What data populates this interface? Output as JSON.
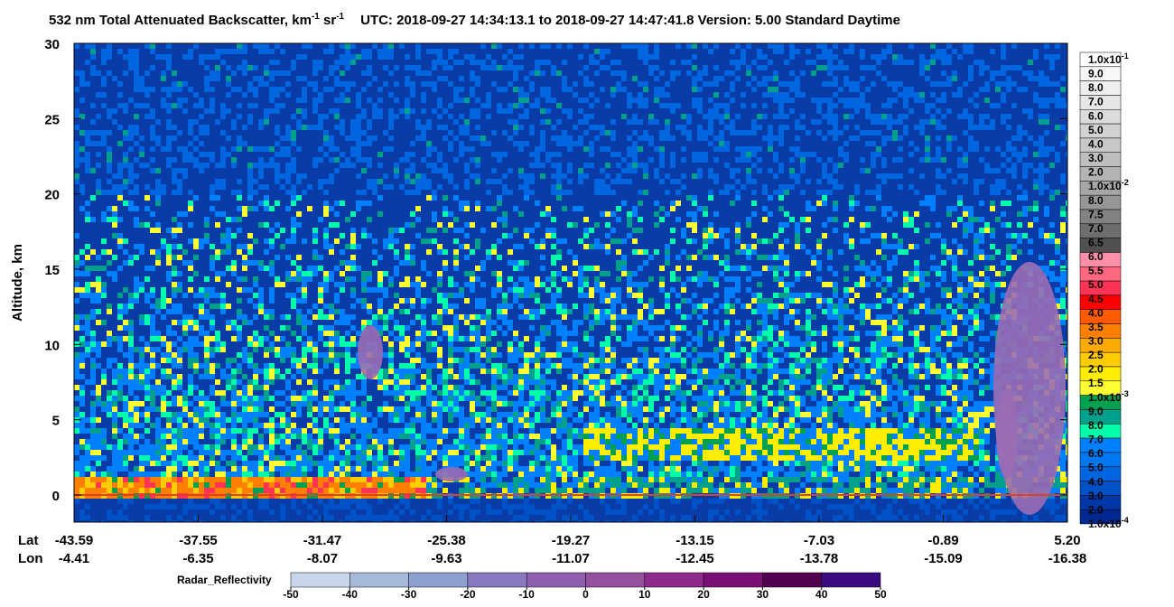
{
  "chart_data": {
    "type": "heatmap",
    "title": {
      "main": "532 nm Total Attenuated Backscatter, km",
      "sup1": "-1",
      "mid": " sr",
      "sup2": "-1",
      "rest": "UTC:  2018-09-27 14:34:13.1  to  2018-09-27 14:47:41.8    Version: 5.00  Standard  Daytime"
    },
    "ylabel": "Altitude, km",
    "ylim": [
      -1.8,
      30
    ],
    "yticks": [
      0,
      5,
      10,
      15,
      20,
      25,
      30
    ],
    "row_labels": [
      "Lat",
      "Lon"
    ],
    "lat": [
      "-43.59",
      "-37.55",
      "-31.47",
      "-25.38",
      "-19.27",
      "-13.15",
      "-7.03",
      "-0.89",
      "5.20"
    ],
    "lon": [
      "-4.41",
      "-6.35",
      "-8.07",
      "-9.63",
      "-11.07",
      "-12.45",
      "-13.78",
      "-15.09",
      "-16.38"
    ],
    "colorbar": {
      "labels": [
        {
          "text": "1.0x10",
          "sup": "-1"
        },
        {
          "text": "9.0"
        },
        {
          "text": "8.0"
        },
        {
          "text": "7.0"
        },
        {
          "text": "6.0"
        },
        {
          "text": "5.0"
        },
        {
          "text": "4.0"
        },
        {
          "text": "3.0"
        },
        {
          "text": "2.0"
        },
        {
          "text": "1.0x10",
          "sup": "-2"
        },
        {
          "text": "8.0"
        },
        {
          "text": "7.5"
        },
        {
          "text": "7.0"
        },
        {
          "text": "6.5"
        },
        {
          "text": "6.0"
        },
        {
          "text": "5.5"
        },
        {
          "text": "5.0"
        },
        {
          "text": "4.5"
        },
        {
          "text": "4.0"
        },
        {
          "text": "3.5"
        },
        {
          "text": "3.0"
        },
        {
          "text": "2.5"
        },
        {
          "text": "2.0"
        },
        {
          "text": "1.5"
        },
        {
          "text": "1.0x10",
          "sup": "-3"
        },
        {
          "text": "9.0"
        },
        {
          "text": "8.0"
        },
        {
          "text": "7.0"
        },
        {
          "text": "6.0"
        },
        {
          "text": "5.0"
        },
        {
          "text": "4.0"
        },
        {
          "text": "3.0"
        },
        {
          "text": "2.0"
        },
        {
          "text": "1.0x10",
          "sup": "-4"
        }
      ],
      "colors": [
        "#ffffff",
        "#f7f7f7",
        "#efefef",
        "#e6e6e6",
        "#dcdcdc",
        "#d2d2d2",
        "#c8c8c8",
        "#bebebe",
        "#b4b4b4",
        "#a6a6a6",
        "#969696",
        "#828282",
        "#6e6e6e",
        "#505050",
        "#ff8fa8",
        "#ff6680",
        "#ff3355",
        "#ff0000",
        "#ff5a00",
        "#ff8000",
        "#ffaa00",
        "#ffcc00",
        "#ffee00",
        "#ffff33",
        "#00a050",
        "#00a08c",
        "#00ffaa",
        "#0080ff",
        "#0078f0",
        "#0066e0",
        "#0050c8",
        "#0038a8",
        "#002890"
      ]
    },
    "radar": {
      "label": "Radar_Reflectivity",
      "ticks": [
        -50,
        -40,
        -30,
        -20,
        -10,
        0,
        10,
        20,
        30,
        40,
        50
      ],
      "colors": [
        "#c9d6ea",
        "#a7b9da",
        "#8f9fd0",
        "#8a78c0",
        "#9060b0",
        "#95509e",
        "#8e2a8c",
        "#7a1076",
        "#540050",
        "#3a0a80"
      ]
    }
  }
}
